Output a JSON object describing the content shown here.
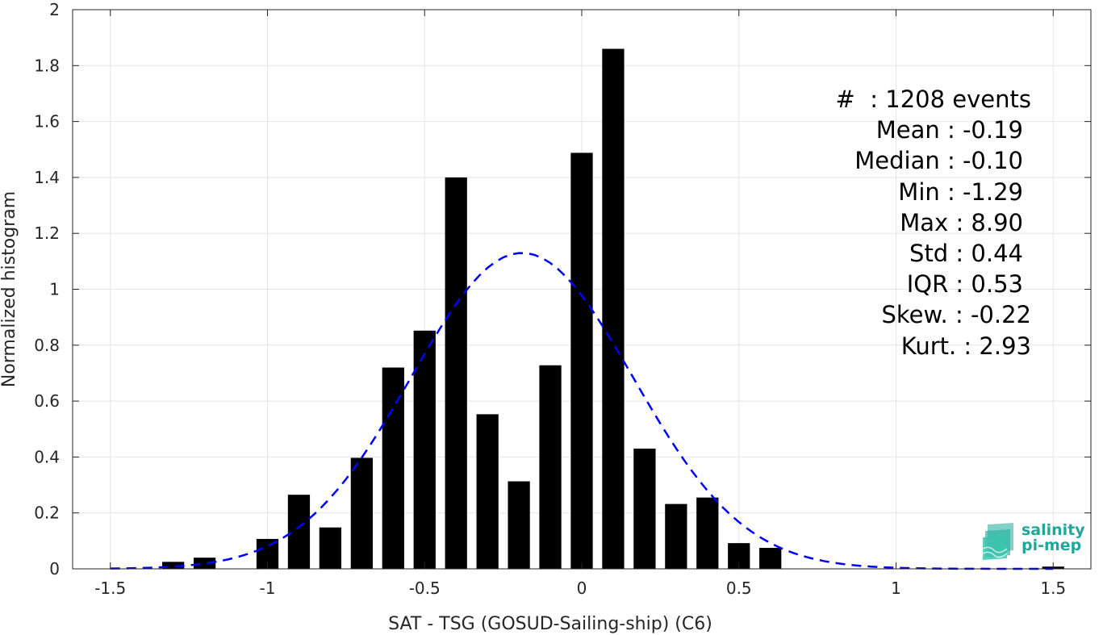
{
  "chart_data": {
    "type": "bar",
    "xlabel": "SAT - TSG (GOSUD-Sailing-ship) (C6)",
    "ylabel": "Normalized histogram",
    "xlim": [
      -1.62,
      1.62
    ],
    "ylim": [
      0,
      2
    ],
    "x_ticks": [
      -1.5,
      -1,
      -0.5,
      0,
      0.5,
      1,
      1.5
    ],
    "x_tick_labels": [
      "-1.5",
      "-1",
      "-0.5",
      "0",
      "0.5",
      "1",
      "1.5"
    ],
    "y_ticks": [
      0,
      0.2,
      0.4,
      0.6,
      0.8,
      1,
      1.2,
      1.4,
      1.6,
      1.8,
      2
    ],
    "y_tick_labels": [
      "0",
      "0.2",
      "0.4",
      "0.6",
      "0.8",
      "1",
      "1.2",
      "1.4",
      "1.6",
      "1.8",
      "2"
    ],
    "grid": true,
    "bar_color": "#000000",
    "bar_width": 0.07,
    "bars": [
      {
        "x": -1.3,
        "y": 0.025
      },
      {
        "x": -1.2,
        "y": 0.04
      },
      {
        "x": -1.0,
        "y": 0.107
      },
      {
        "x": -0.9,
        "y": 0.265
      },
      {
        "x": -0.8,
        "y": 0.148
      },
      {
        "x": -0.7,
        "y": 0.397
      },
      {
        "x": -0.6,
        "y": 0.72
      },
      {
        "x": -0.5,
        "y": 0.852
      },
      {
        "x": -0.4,
        "y": 1.4
      },
      {
        "x": -0.3,
        "y": 0.553
      },
      {
        "x": -0.2,
        "y": 0.313
      },
      {
        "x": -0.1,
        "y": 0.728
      },
      {
        "x": 0.0,
        "y": 1.488
      },
      {
        "x": 0.1,
        "y": 1.86
      },
      {
        "x": 0.2,
        "y": 0.43
      },
      {
        "x": 0.3,
        "y": 0.232
      },
      {
        "x": 0.4,
        "y": 0.255
      },
      {
        "x": 0.5,
        "y": 0.092
      },
      {
        "x": 0.6,
        "y": 0.075
      },
      {
        "x": 1.5,
        "y": 0.008
      }
    ],
    "fit_curve": {
      "style": "dashed",
      "color": "#0000ff",
      "mean": -0.19,
      "std": 0.353,
      "x_range": [
        -1.5,
        1.5
      ],
      "peak": 1.13
    },
    "annotations": [
      "#  : 1208 events",
      "Mean : -0.19",
      "Median : -0.10",
      "Min : -1.29",
      "Max : 8.90",
      "Std : 0.44",
      "IQR : 0.53",
      "Skew. : -0.22",
      "Kurt. : 2.93"
    ]
  },
  "logo": {
    "line1": "salinity",
    "line2": "pi-mep",
    "color": "#1fa79a"
  }
}
